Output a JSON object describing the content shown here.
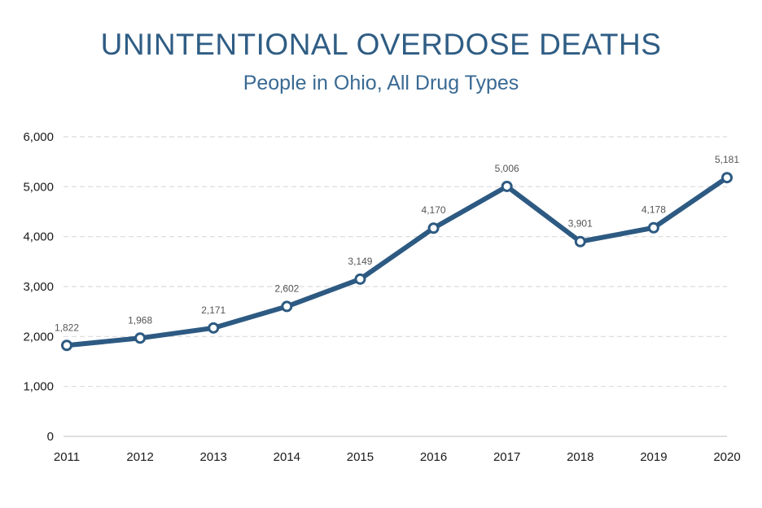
{
  "chart_data": {
    "type": "line",
    "title": "UNINTENTIONAL OVERDOSE DEATHS",
    "subtitle": "People in Ohio, All Drug Types",
    "xlabel": "",
    "ylabel": "",
    "x": [
      "2011",
      "2012",
      "2013",
      "2014",
      "2015",
      "2016",
      "2017",
      "2018",
      "2019",
      "2020"
    ],
    "series": [
      {
        "values": [
          1822,
          1968,
          2171,
          2602,
          3149,
          4170,
          5006,
          3901,
          4178,
          5181
        ],
        "labels": [
          "1,822",
          "1,968",
          "2,171",
          "2,602",
          "3,149",
          "4,170",
          "5,006",
          "3,901",
          "4,178",
          "5,181"
        ]
      }
    ],
    "ylim": [
      0,
      6000
    ],
    "yticks": [
      0,
      1000,
      2000,
      3000,
      4000,
      5000,
      6000
    ],
    "ytick_labels": [
      "0",
      "1,000",
      "2,000",
      "3,000",
      "4,000",
      "5,000",
      "6,000"
    ],
    "grid": "horizontal dashed",
    "legend": "none",
    "colors": {
      "line": "#2d5a82",
      "marker_fill": "#ffffff",
      "title": "#2f5d84",
      "grid": "#d9d9d9"
    }
  }
}
